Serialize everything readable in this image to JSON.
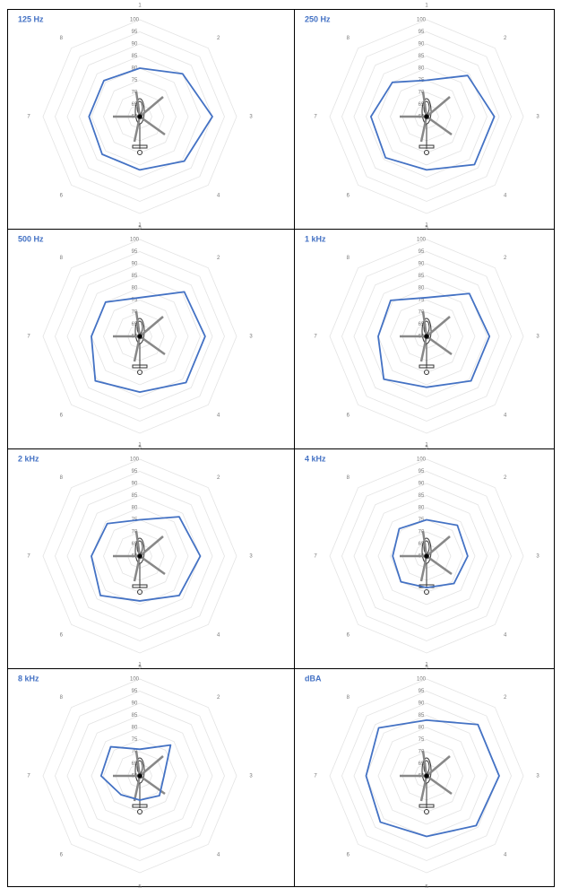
{
  "chart_data": [
    {
      "type": "radar",
      "title": "125 Hz",
      "categories": [
        "1",
        "2",
        "3",
        "4",
        "5",
        "6",
        "7",
        "8"
      ],
      "values": [
        80,
        85,
        90,
        86,
        82,
        82,
        81,
        81
      ],
      "color": "#4472c4",
      "ylim": [
        60,
        100
      ],
      "yticks": [
        60,
        65,
        70,
        75,
        80,
        85,
        90,
        95,
        100
      ]
    },
    {
      "type": "radar",
      "title": "250 Hz",
      "categories": [
        "1",
        "2",
        "3",
        "4",
        "5",
        "6",
        "7",
        "8"
      ],
      "values": [
        75,
        84,
        88,
        88,
        82,
        84,
        83,
        80
      ],
      "color": "#4472c4",
      "ylim": [
        60,
        100
      ],
      "yticks": [
        60,
        65,
        70,
        75,
        80,
        85,
        90,
        95,
        100
      ]
    },
    {
      "type": "radar",
      "title": "500 Hz",
      "categories": [
        "1",
        "2",
        "3",
        "4",
        "5",
        "6",
        "7",
        "8"
      ],
      "values": [
        76,
        86,
        87,
        87,
        83,
        86,
        80,
        80
      ],
      "color": "#4472c4",
      "ylim": [
        60,
        100
      ],
      "yticks": [
        60,
        65,
        70,
        75,
        80,
        85,
        90,
        95,
        100
      ]
    },
    {
      "type": "radar",
      "title": "1 kHz",
      "categories": [
        "1",
        "2",
        "3",
        "4",
        "5",
        "6",
        "7",
        "8"
      ],
      "values": [
        76,
        85,
        86,
        86,
        81,
        85,
        80,
        81
      ],
      "color": "#4472c4",
      "ylim": [
        60,
        100
      ],
      "yticks": [
        60,
        65,
        70,
        75,
        80,
        85,
        90,
        95,
        100
      ]
    },
    {
      "type": "radar",
      "title": "2 kHz",
      "categories": [
        "1",
        "2",
        "3",
        "4",
        "5",
        "6",
        "7",
        "8"
      ],
      "values": [
        75,
        83,
        85,
        83,
        78.5,
        83,
        80,
        79
      ],
      "color": "#4472c4",
      "ylim": [
        60,
        100
      ],
      "yticks": [
        60,
        65,
        70,
        75,
        80,
        85,
        90,
        95,
        100
      ]
    },
    {
      "type": "radar",
      "title": "4 kHz",
      "categories": [
        "1",
        "2",
        "3",
        "4",
        "5",
        "6",
        "7",
        "8"
      ],
      "values": [
        75,
        78,
        77,
        76,
        73,
        75,
        74,
        76
      ],
      "color": "#4472c4",
      "ylim": [
        60,
        100
      ],
      "yticks": [
        60,
        65,
        70,
        75,
        80,
        85,
        90,
        95,
        100
      ]
    },
    {
      "type": "radar",
      "title": "8 kHz",
      "categories": [
        "1",
        "2",
        "3",
        "4",
        "5",
        "6",
        "7",
        "8"
      ],
      "values": [
        71,
        78,
        70,
        71.5,
        70,
        71,
        76,
        77
      ],
      "color": "#4472c4",
      "ylim": [
        60,
        100
      ],
      "yticks": [
        60,
        65,
        70,
        75,
        80,
        85,
        90,
        95,
        100
      ]
    },
    {
      "type": "radar",
      "title": "dBA",
      "categories": [
        "1",
        "2",
        "3",
        "4",
        "5",
        "6",
        "7",
        "8"
      ],
      "values": [
        83,
        90,
        90,
        89,
        85,
        87,
        85,
        88
      ],
      "color": "#4472c4",
      "ylim": [
        60,
        100
      ],
      "yticks": [
        60,
        65,
        70,
        75,
        80,
        85,
        90,
        95,
        100
      ]
    }
  ]
}
